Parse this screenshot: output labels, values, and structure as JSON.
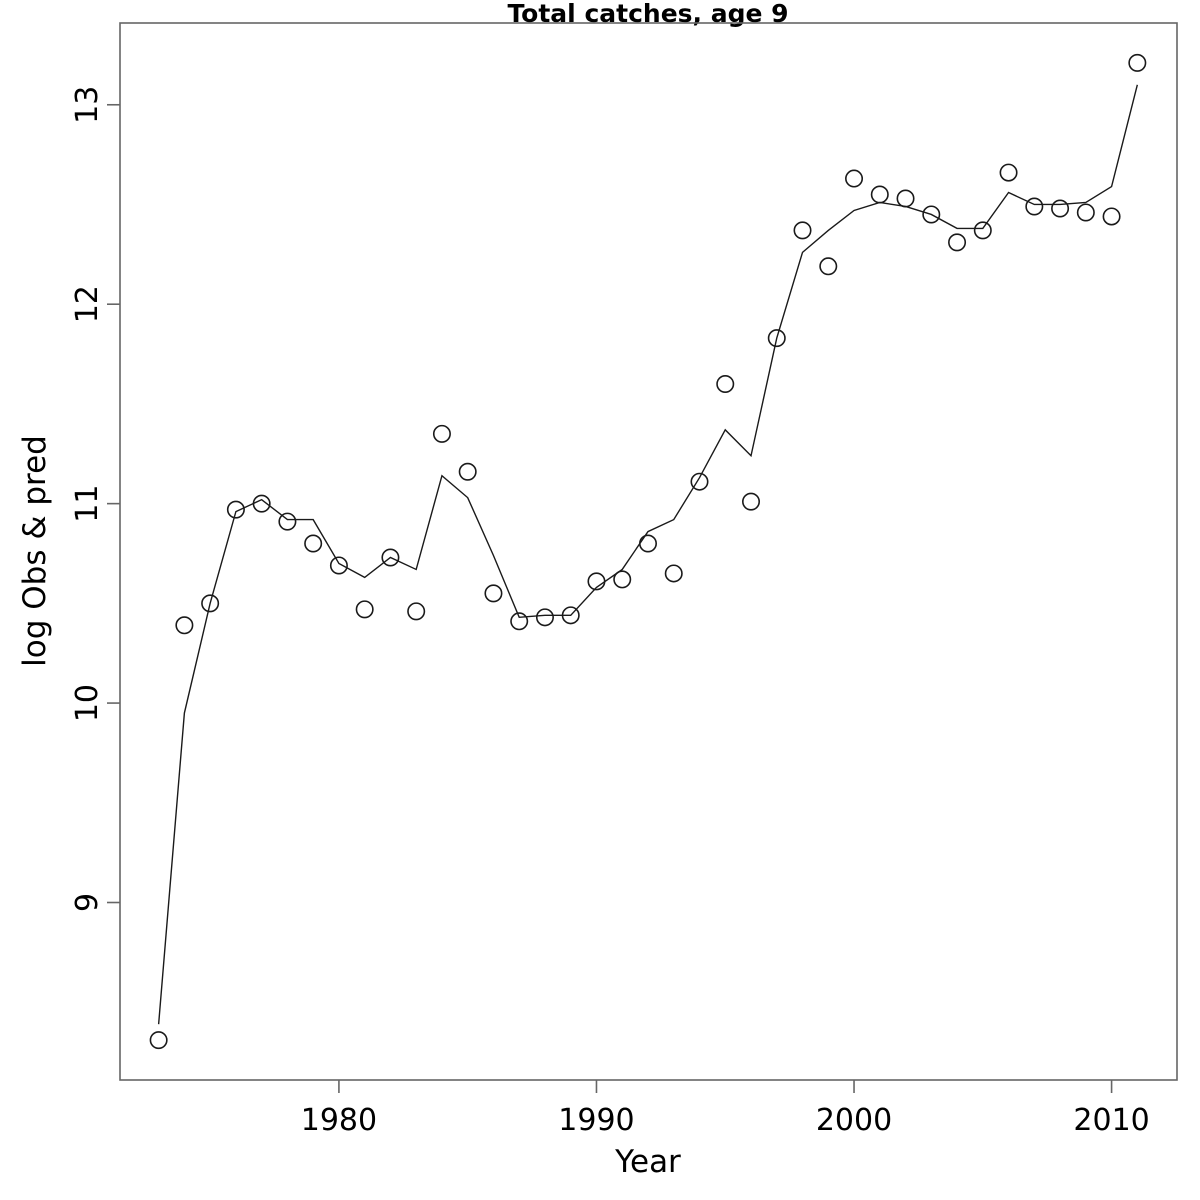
{
  "chart_data": {
    "type": "line",
    "title": "Total catches, age 9",
    "xlabel": "Year",
    "ylabel": "log Obs & pred",
    "grid": false,
    "legend": "none",
    "background_color": "#ffffff",
    "frame_color": "#666666",
    "data_color": "#1a1a1a",
    "point_style": "open-circle",
    "x": [
      1973,
      1974,
      1975,
      1976,
      1977,
      1978,
      1979,
      1980,
      1981,
      1982,
      1983,
      1984,
      1985,
      1986,
      1987,
      1988,
      1989,
      1990,
      1991,
      1992,
      1993,
      1994,
      1995,
      1996,
      1997,
      1998,
      1999,
      2000,
      2001,
      2002,
      2003,
      2004,
      2005,
      2006,
      2007,
      2008,
      2009,
      2010,
      2011
    ],
    "series": [
      {
        "name": "observed (points)",
        "marker": "open-circle",
        "values": [
          8.31,
          10.39,
          10.5,
          10.97,
          11.0,
          10.91,
          10.8,
          10.69,
          10.47,
          10.73,
          10.46,
          11.35,
          11.16,
          10.55,
          10.41,
          10.43,
          10.44,
          10.61,
          10.62,
          10.8,
          10.65,
          11.11,
          11.6,
          11.01,
          11.83,
          12.37,
          12.19,
          12.63,
          12.55,
          12.53,
          12.45,
          12.31,
          12.37,
          12.66,
          12.49,
          12.48,
          12.46,
          12.44,
          13.21
        ]
      },
      {
        "name": "predicted (line)",
        "marker": "line",
        "values": [
          8.39,
          9.95,
          10.5,
          10.96,
          11.02,
          10.92,
          10.92,
          10.7,
          10.63,
          10.73,
          10.67,
          11.14,
          11.03,
          10.74,
          10.43,
          10.44,
          10.44,
          10.58,
          10.67,
          10.86,
          10.92,
          11.13,
          11.37,
          11.24,
          11.83,
          12.26,
          12.37,
          12.47,
          12.51,
          12.49,
          12.45,
          12.38,
          12.38,
          12.56,
          12.5,
          12.5,
          12.51,
          12.59,
          13.1
        ]
      }
    ],
    "x_axis": {
      "range": [
        1971.5,
        2012.54
      ],
      "ticks": [
        1980,
        1990,
        2000,
        2010
      ],
      "tick_labels": [
        "1980",
        "1990",
        "2000",
        "2010"
      ]
    },
    "y_axis": {
      "range": [
        8.11,
        13.41
      ],
      "ticks": [
        9,
        10,
        11,
        12,
        13
      ],
      "tick_labels": [
        "9",
        "10",
        "11",
        "12",
        "13"
      ]
    }
  }
}
